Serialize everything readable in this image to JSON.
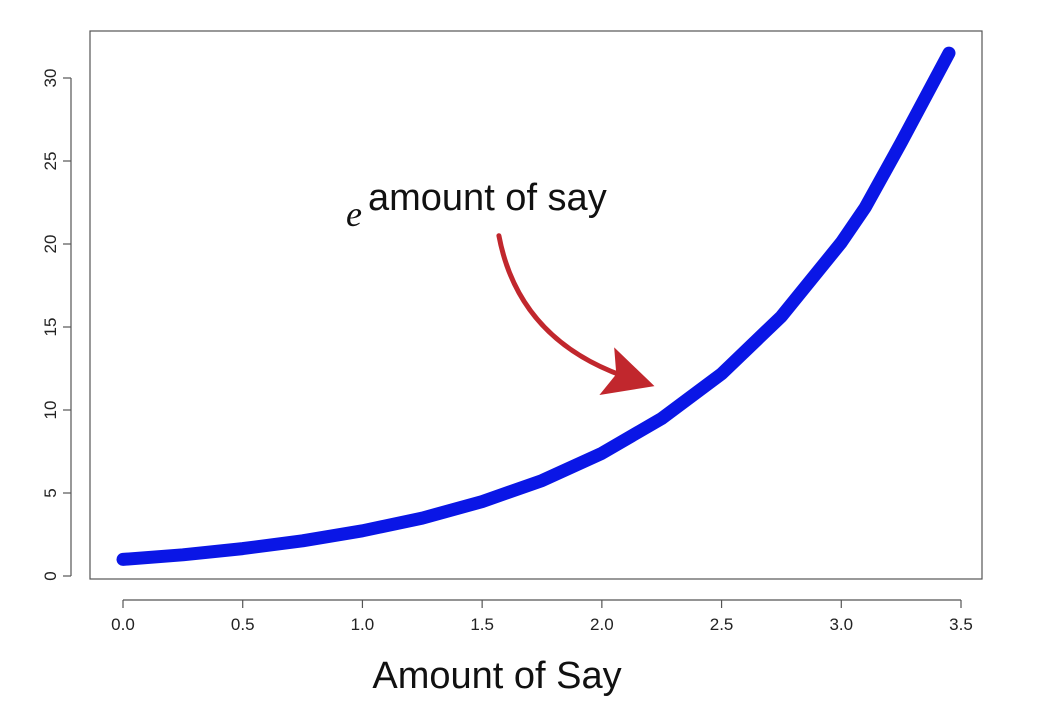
{
  "chart_data": {
    "type": "line",
    "title": "",
    "xlabel": "Amount of Say",
    "ylabel": "",
    "xlim": [
      0.0,
      3.5
    ],
    "ylim": [
      0,
      32
    ],
    "x_ticks": [
      "0.0",
      "0.5",
      "1.0",
      "1.5",
      "2.0",
      "2.5",
      "3.0",
      "3.5"
    ],
    "x_tick_values": [
      0.0,
      0.5,
      1.0,
      1.5,
      2.0,
      2.5,
      3.0,
      3.5
    ],
    "y_ticks": [
      "0",
      "5",
      "10",
      "15",
      "20",
      "25",
      "30"
    ],
    "y_tick_values": [
      0,
      5,
      10,
      15,
      20,
      25,
      30
    ],
    "grid": false,
    "series": [
      {
        "color": "#0a16e6",
        "x": [
          0.0,
          0.25,
          0.5,
          0.75,
          1.0,
          1.25,
          1.5,
          1.75,
          2.0,
          2.25,
          2.5,
          2.75,
          3.0,
          3.1,
          3.25,
          3.45
        ],
        "y": [
          1.0,
          1.28,
          1.65,
          2.12,
          2.72,
          3.49,
          4.48,
          5.75,
          7.39,
          9.49,
          12.18,
          15.64,
          20.09,
          22.2,
          26.1,
          31.5
        ]
      }
    ],
    "annotation": {
      "base": "e",
      "exponent_text": "amount of say",
      "arrow_color": "#c1272d",
      "arrow_from": [
        1.57,
        20.5
      ],
      "arrow_to": [
        2.14,
        11.8
      ]
    }
  }
}
